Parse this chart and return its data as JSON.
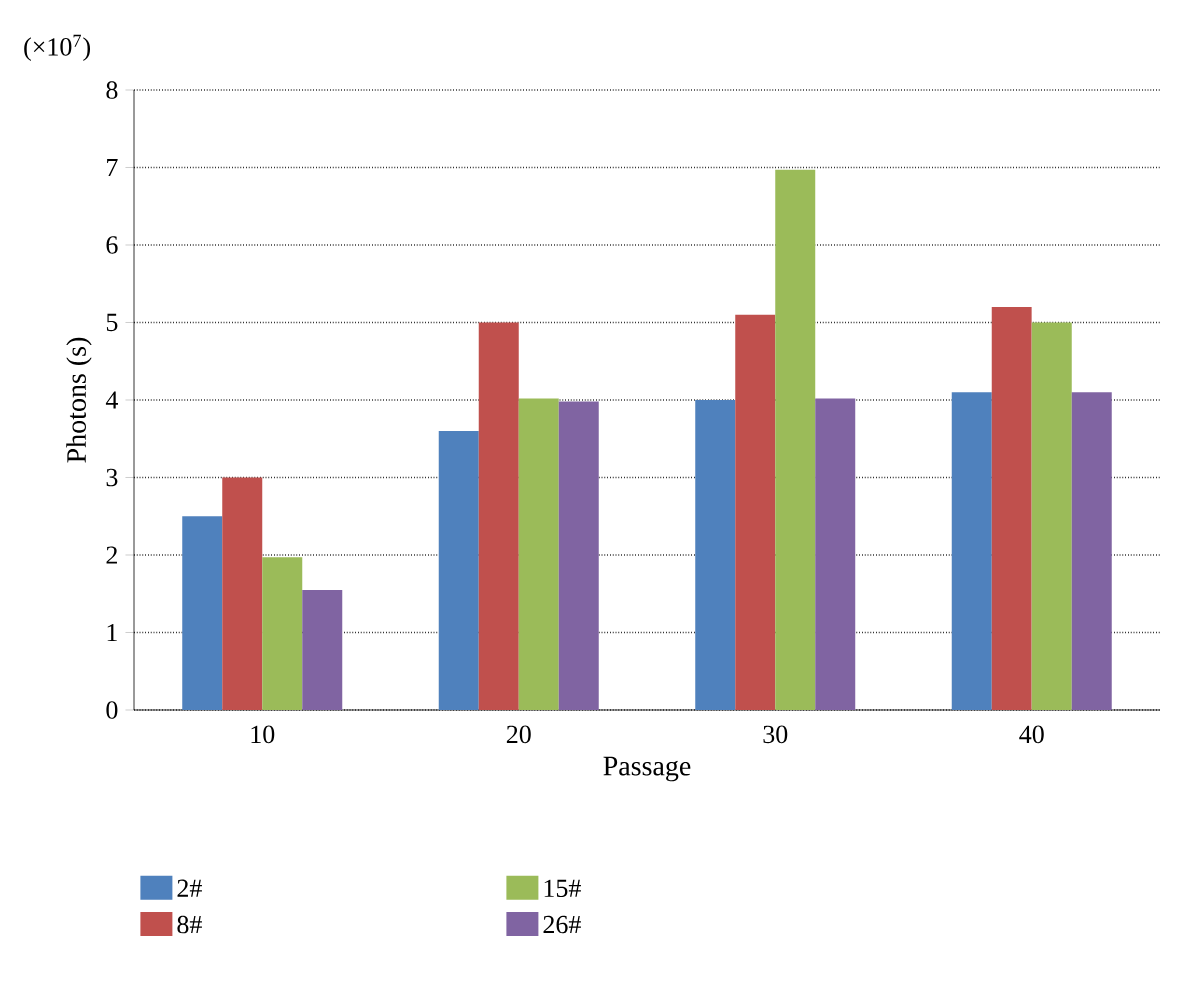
{
  "chart_data": {
    "type": "bar",
    "xlabel": "Passage",
    "ylabel": "Photons (s)",
    "annotations": [
      "(×10$^{7}$)"
    ],
    "categories": [
      "10",
      "20",
      "30",
      "40"
    ],
    "series": [
      {
        "name": "2#",
        "color": "#4f81bd",
        "values": [
          2.5,
          3.6,
          4.0,
          4.1
        ]
      },
      {
        "name": "8#",
        "color": "#c0504d",
        "values": [
          3.0,
          5.0,
          5.1,
          5.2
        ]
      },
      {
        "name": "15#",
        "color": "#9bbb59",
        "values": [
          1.97,
          4.02,
          6.97,
          5.0
        ]
      },
      {
        "name": "26#",
        "color": "#8064a2",
        "values": [
          1.55,
          3.98,
          4.02,
          4.1
        ]
      }
    ],
    "ylim": [
      0,
      8
    ],
    "yticks": [
      0,
      1,
      2,
      3,
      4,
      5,
      6,
      7,
      8
    ],
    "grid": "y",
    "legend": "bottom"
  }
}
